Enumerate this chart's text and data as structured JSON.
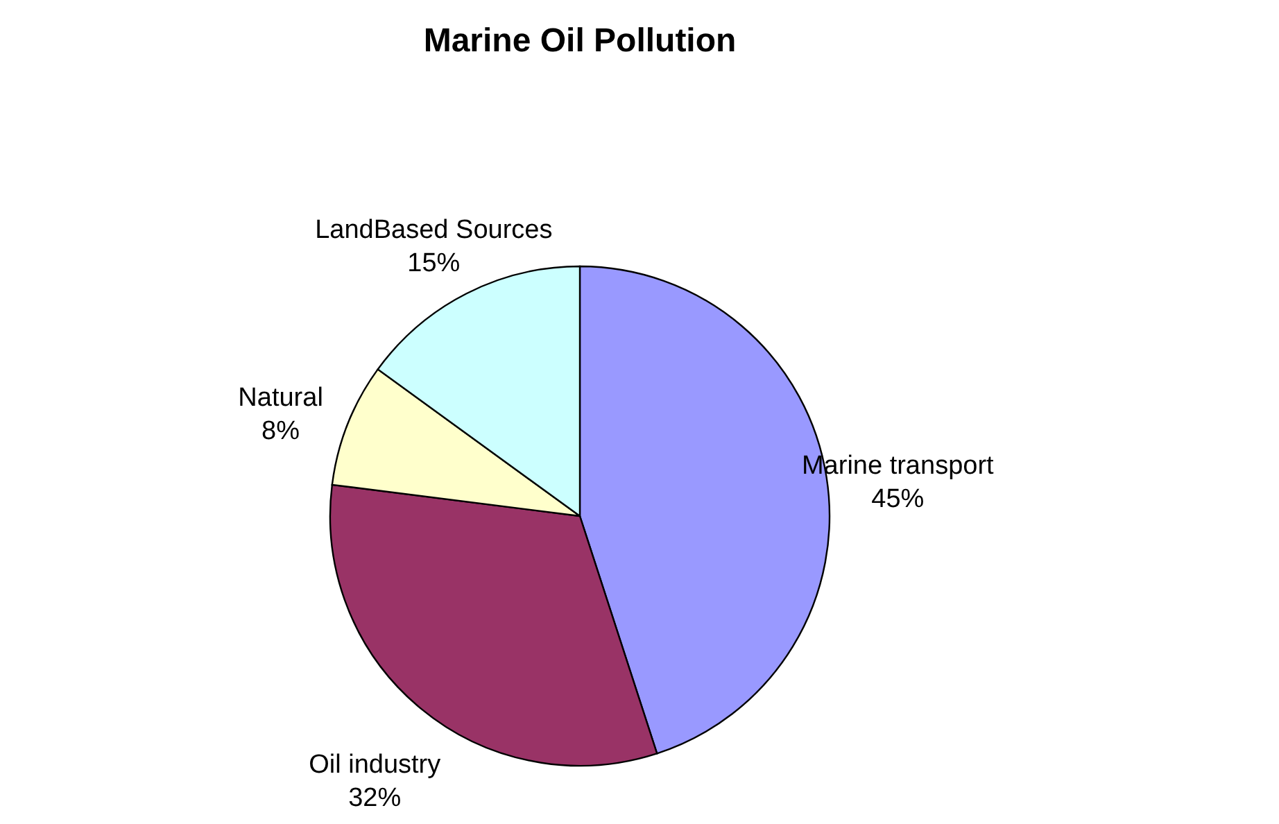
{
  "chart_data": {
    "type": "pie",
    "title": "Marine Oil Pollution",
    "categories": [
      "Marine transport",
      "Oil industry",
      "Natural",
      "LandBased Sources"
    ],
    "values": [
      45,
      32,
      8,
      15
    ],
    "colors": [
      "#9999ff",
      "#993366",
      "#ffffcc",
      "#ccffff"
    ],
    "value_labels": [
      "45%",
      "32%",
      "8%",
      "15%"
    ],
    "legend": false
  }
}
